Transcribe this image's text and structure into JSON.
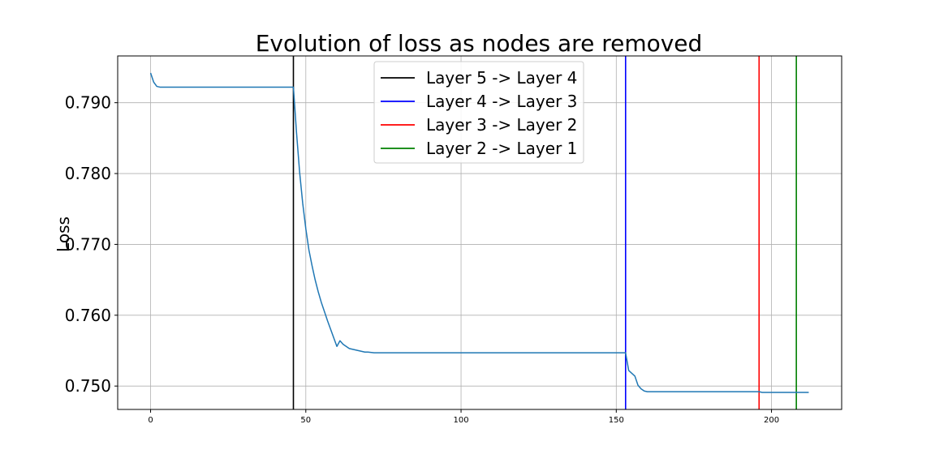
{
  "chart_data": {
    "type": "line",
    "title": "Evolution of loss as nodes are removed",
    "xlabel": "",
    "ylabel": "Loss",
    "xlim": [
      -10.6,
      222.6
    ],
    "ylim": [
      0.7467,
      0.7966
    ],
    "x_ticks": [
      0,
      50,
      100,
      150,
      200
    ],
    "y_ticks": [
      0.75,
      0.76,
      0.77,
      0.78,
      0.79
    ],
    "y_tick_labels": [
      "0.750",
      "0.760",
      "0.770",
      "0.780",
      "0.790"
    ],
    "grid": true,
    "legend_position": "upper center",
    "series": [
      {
        "color": "#1f77b4",
        "x": [
          0,
          1,
          2,
          3,
          5,
          10,
          20,
          30,
          40,
          46,
          47,
          48,
          49,
          50,
          51,
          52,
          53,
          54,
          55,
          56,
          57,
          58,
          59,
          60,
          61,
          62,
          63,
          64,
          65,
          66,
          67,
          68,
          69,
          70,
          72,
          75,
          80,
          100,
          130,
          153,
          154,
          155,
          156,
          157,
          158,
          159,
          160,
          165,
          180,
          196,
          197,
          205,
          212
        ],
        "values": [
          0.7942,
          0.7929,
          0.7923,
          0.7922,
          0.7922,
          0.7922,
          0.7922,
          0.7922,
          0.7922,
          0.7922,
          0.7858,
          0.7802,
          0.7758,
          0.7722,
          0.7692,
          0.767,
          0.765,
          0.7633,
          0.7618,
          0.7605,
          0.7592,
          0.758,
          0.7568,
          0.7556,
          0.7564,
          0.7559,
          0.7556,
          0.7553,
          0.7552,
          0.7551,
          0.755,
          0.7549,
          0.7548,
          0.7548,
          0.7547,
          0.7547,
          0.7547,
          0.7547,
          0.7547,
          0.7547,
          0.7522,
          0.7518,
          0.7514,
          0.7501,
          0.7496,
          0.7493,
          0.7492,
          0.7492,
          0.7492,
          0.7492,
          0.7491,
          0.7491,
          0.7491
        ]
      }
    ],
    "vlines": [
      {
        "label": "Layer 5 -> Layer 4",
        "x": 46,
        "color": "#000000"
      },
      {
        "label": "Layer 4 -> Layer 3",
        "x": 153,
        "color": "#0000ff"
      },
      {
        "label": "Layer 3 -> Layer 2",
        "x": 196,
        "color": "#ff0000"
      },
      {
        "label": "Layer 2 -> Layer 1",
        "x": 208,
        "color": "#008000"
      }
    ],
    "colors": {
      "grid": "#b0b0b0",
      "axes": "#000000",
      "background": "#ffffff"
    }
  }
}
